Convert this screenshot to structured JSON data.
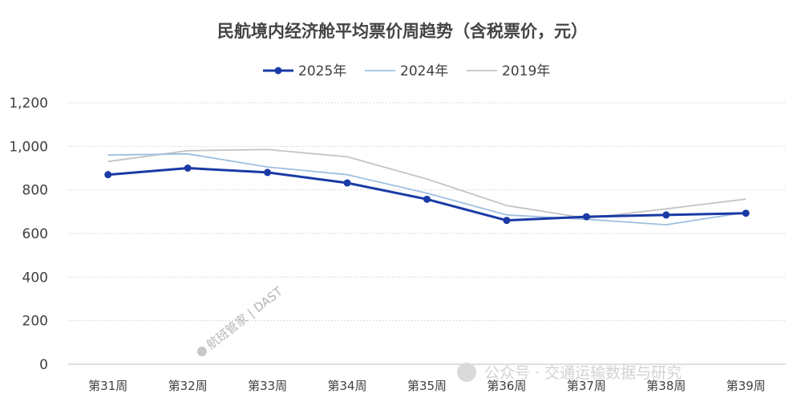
{
  "chart_data": {
    "type": "line",
    "title": "民航境内经济舱平均票价周趋势（含税票价，元）",
    "xlabel": "",
    "ylabel": "",
    "categories": [
      "第31周",
      "第32周",
      "第33周",
      "第34周",
      "第35周",
      "第36周",
      "第37周",
      "第38周",
      "第39周"
    ],
    "ylim": [
      0,
      1200
    ],
    "yticks": [
      "0",
      "200",
      "400",
      "600",
      "800",
      "1,000",
      "1,200"
    ],
    "grid": true,
    "legend_position": "top",
    "series": [
      {
        "name": "2025年",
        "values": [
          870,
          900,
          880,
          832,
          757,
          660,
          677,
          685,
          693
        ],
        "color": "#1a3aa6",
        "markers": true
      },
      {
        "name": "2024年",
        "values": [
          960,
          965,
          905,
          870,
          785,
          685,
          665,
          640,
          697
        ],
        "color": "#9fbfe0",
        "markers": false
      },
      {
        "name": "2019年",
        "values": [
          930,
          980,
          985,
          952,
          850,
          728,
          670,
          713,
          758
        ],
        "color": "#c4c4c4",
        "markers": false
      }
    ]
  },
  "watermarks": {
    "logo": "航班管家 | DAST",
    "account": "公众号 · 交通运输数据与研究"
  }
}
